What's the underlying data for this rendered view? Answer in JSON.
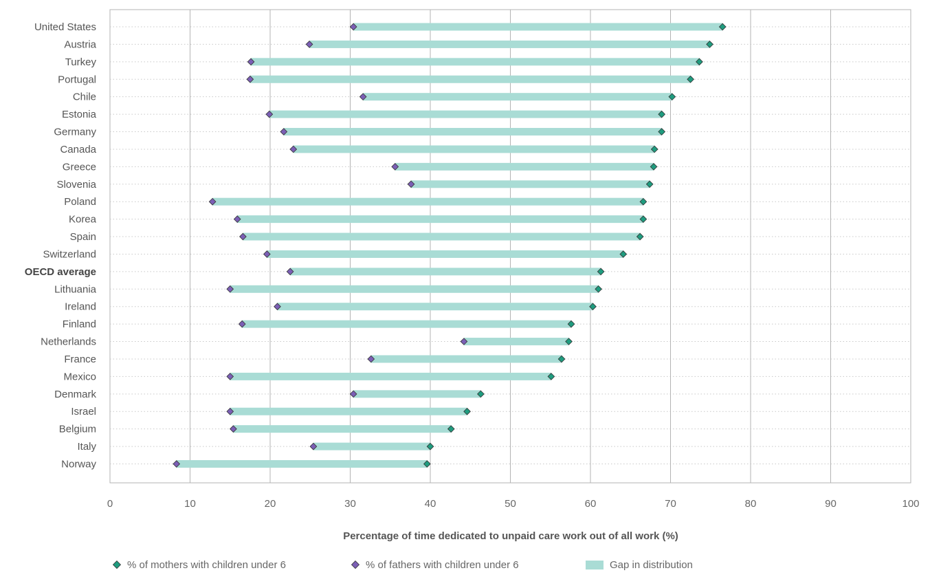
{
  "chart_data": {
    "type": "bar",
    "subtype": "dumbbell",
    "orientation": "horizontal",
    "categories": [
      "United States",
      "Austria",
      "Turkey",
      "Portugal",
      "Chile",
      "Estonia",
      "Germany",
      "Canada",
      "Greece",
      "Slovenia",
      "Poland",
      "Korea",
      "Spain",
      "Switzerland",
      "OECD average",
      "Lithuania",
      "Ireland",
      "Finland",
      "Netherlands",
      "France",
      "Mexico",
      "Denmark",
      "Israel",
      "Belgium",
      "Italy",
      "Norway"
    ],
    "highlight_category": "OECD average",
    "series": [
      {
        "name": "% of mothers with children under 6",
        "color": "#1f9c7f",
        "marker": "diamond",
        "values": [
          76.5,
          74.9,
          73.6,
          72.5,
          70.2,
          68.9,
          68.9,
          68.0,
          67.9,
          67.4,
          66.6,
          66.6,
          66.2,
          64.1,
          61.3,
          61.0,
          60.3,
          57.6,
          57.3,
          56.4,
          55.1,
          46.3,
          44.6,
          42.6,
          40.0,
          39.6
        ]
      },
      {
        "name": "% of fathers with children under 6",
        "color": "#7b5fb5",
        "marker": "diamond",
        "values": [
          30.4,
          24.9,
          17.6,
          17.5,
          31.6,
          19.9,
          21.7,
          22.9,
          35.6,
          37.6,
          12.8,
          15.9,
          16.6,
          19.6,
          22.5,
          15.0,
          20.9,
          16.5,
          44.2,
          32.6,
          15.0,
          30.4,
          15.0,
          15.4,
          25.4,
          8.3
        ]
      }
    ],
    "gap": {
      "name": "Gap in distribution",
      "color": "#a9dcd5"
    },
    "xlabel": "Percentage of time dedicated to unpaid care work out of all work (%)",
    "xlim": [
      0,
      100
    ],
    "xticks": [
      0,
      10,
      20,
      30,
      40,
      50,
      60,
      70,
      80,
      90,
      100
    ],
    "grid": {
      "vertical": true,
      "vertical_color": "#b3b3b3",
      "row_dotted": true,
      "row_color": "#c8c8c8"
    },
    "legend_position": "bottom-left"
  }
}
